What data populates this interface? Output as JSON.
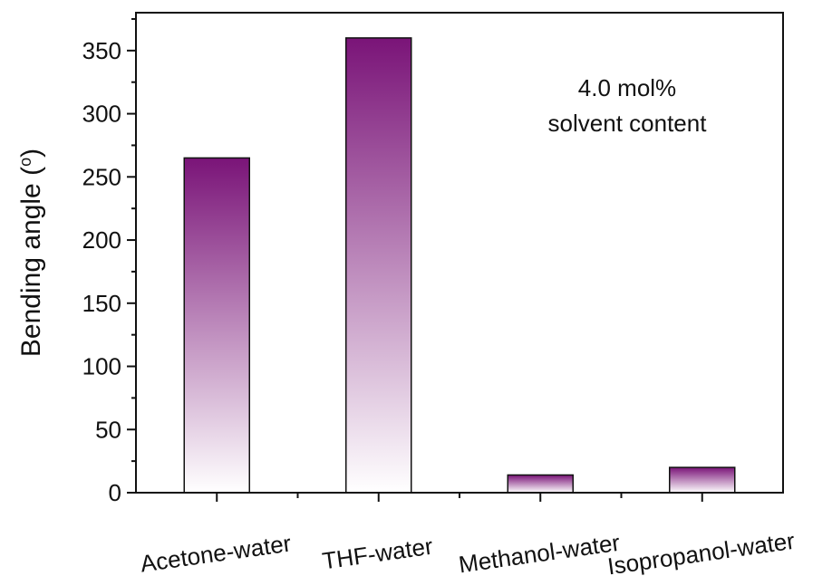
{
  "chart_data": {
    "type": "bar",
    "categories": [
      "Acetone-water",
      "THF-water",
      "Methanol-water",
      "Isopropanol-water"
    ],
    "values": [
      265,
      360,
      14,
      20
    ],
    "ylabel": "Bending angle (°)",
    "ylabel_main": "Bending angle (",
    "ylabel_sup": "o",
    "ylabel_end": ")",
    "xlabel": "",
    "ylim": [
      0,
      380
    ],
    "yticks": [
      0,
      50,
      100,
      150,
      200,
      250,
      300,
      350
    ],
    "annotation": [
      "4.0 mol%",
      "solvent content"
    ],
    "bar_color_top": "#7a1478",
    "bar_color_bottom": "#ffffff",
    "grid": false
  }
}
